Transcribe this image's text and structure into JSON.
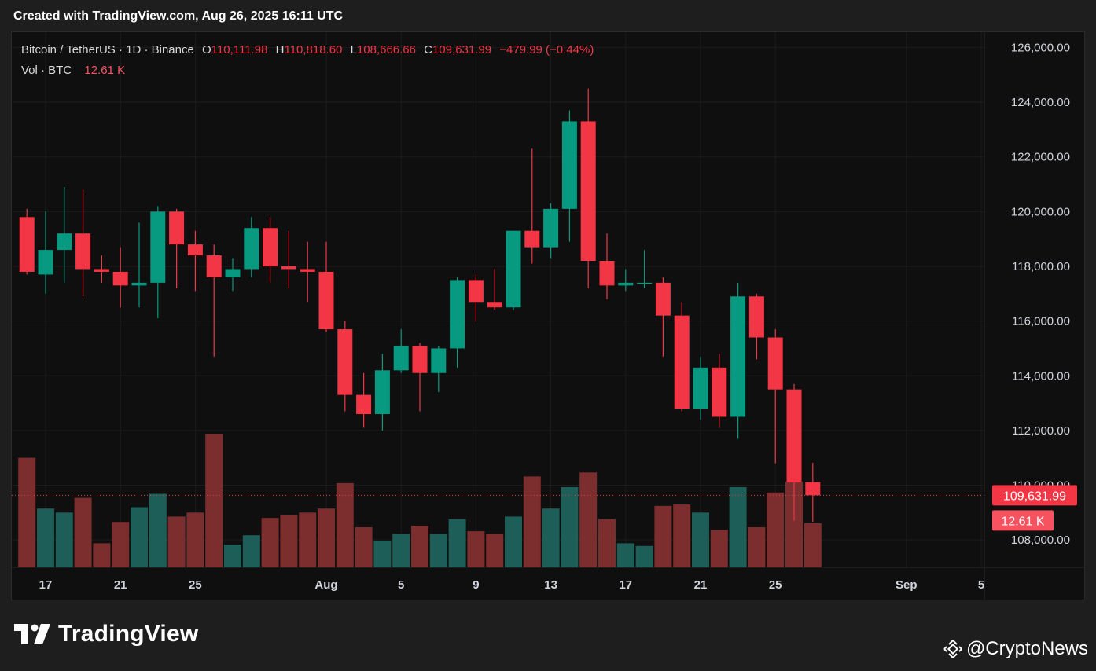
{
  "caption": "Created with TradingView.com, Aug 26, 2025 16:11 UTC",
  "legend": {
    "symbol": "Bitcoin / TetherUS · 1D · Binance",
    "open_label": "O",
    "open": "110,111.98",
    "high_label": "H",
    "high": "110,818.60",
    "low_label": "L",
    "low": "108,666.66",
    "close_label": "C",
    "close": "109,631.99",
    "change": "−479.99 (−0.44%)",
    "vol_label": "Vol · BTC",
    "vol_value": "12.61 K"
  },
  "logos": {
    "left_text": "TradingView",
    "right_text": "@CryptoNews"
  },
  "colors": {
    "up": "#089981",
    "down": "#f23645",
    "vol_up": "#1d5e58",
    "vol_down": "#7c2d2d",
    "background": "#0f0f0f",
    "grid": "#1c1c1c",
    "axis_text": "#d1d4dc"
  },
  "chart_data": {
    "type": "candlestick",
    "title": "Bitcoin / TetherUS · 1D · Binance",
    "y_axis": {
      "range": [
        107000,
        126500
      ],
      "ticks": [
        108000,
        110000,
        112000,
        114000,
        116000,
        118000,
        120000,
        122000,
        124000,
        126000
      ],
      "tick_labels": [
        "108,000.00",
        "110,000.00",
        "112,000.00",
        "114,000.00",
        "116,000.00",
        "118,000.00",
        "120,000.00",
        "122,000.00",
        "124,000.00",
        "126,000.00"
      ]
    },
    "x_axis": {
      "tick_labels": [
        "17",
        "21",
        "25",
        "Aug",
        "5",
        "9",
        "13",
        "17",
        "21",
        "25",
        "Sep",
        "5"
      ],
      "tick_dates": [
        "2025-07-17",
        "2025-07-21",
        "2025-07-25",
        "2025-08-01",
        "2025-08-05",
        "2025-08-09",
        "2025-08-13",
        "2025-08-17",
        "2025-08-21",
        "2025-08-25",
        "2025-09-01",
        "2025-09-05"
      ]
    },
    "last_price_label": "109,631.99",
    "last_price": 109631.99,
    "last_volume_label": "12.61 K",
    "candles": [
      {
        "date": "2025-07-16",
        "o": 119800,
        "h": 120100,
        "l": 117700,
        "c": 117800
      },
      {
        "date": "2025-07-17",
        "o": 117700,
        "h": 120000,
        "l": 117000,
        "c": 118600
      },
      {
        "date": "2025-07-18",
        "o": 118600,
        "h": 120900,
        "l": 117400,
        "c": 119200
      },
      {
        "date": "2025-07-19",
        "o": 119200,
        "h": 120800,
        "l": 116900,
        "c": 117900
      },
      {
        "date": "2025-07-20",
        "o": 117900,
        "h": 118400,
        "l": 117400,
        "c": 117800
      },
      {
        "date": "2025-07-21",
        "o": 117800,
        "h": 118700,
        "l": 116500,
        "c": 117300
      },
      {
        "date": "2025-07-22",
        "o": 117300,
        "h": 119600,
        "l": 116500,
        "c": 117400
      },
      {
        "date": "2025-07-23",
        "o": 117400,
        "h": 120200,
        "l": 116100,
        "c": 120000
      },
      {
        "date": "2025-07-24",
        "o": 120000,
        "h": 120100,
        "l": 117200,
        "c": 118800
      },
      {
        "date": "2025-07-25",
        "o": 118800,
        "h": 119300,
        "l": 117100,
        "c": 118400
      },
      {
        "date": "2025-07-26",
        "o": 118400,
        "h": 118800,
        "l": 114700,
        "c": 117600
      },
      {
        "date": "2025-07-27",
        "o": 117600,
        "h": 118300,
        "l": 117100,
        "c": 117900
      },
      {
        "date": "2025-07-28",
        "o": 117900,
        "h": 119800,
        "l": 117600,
        "c": 119400
      },
      {
        "date": "2025-07-29",
        "o": 119400,
        "h": 119800,
        "l": 117400,
        "c": 118000
      },
      {
        "date": "2025-07-30",
        "o": 118000,
        "h": 119300,
        "l": 117200,
        "c": 117900
      },
      {
        "date": "2025-07-31",
        "o": 117900,
        "h": 118900,
        "l": 116700,
        "c": 117800
      },
      {
        "date": "2025-08-01",
        "o": 117800,
        "h": 118900,
        "l": 115600,
        "c": 115700
      },
      {
        "date": "2025-08-02",
        "o": 115700,
        "h": 116000,
        "l": 112700,
        "c": 113300
      },
      {
        "date": "2025-08-03",
        "o": 113300,
        "h": 114100,
        "l": 112100,
        "c": 112600
      },
      {
        "date": "2025-08-04",
        "o": 112600,
        "h": 114800,
        "l": 112000,
        "c": 114200
      },
      {
        "date": "2025-08-05",
        "o": 114200,
        "h": 115700,
        "l": 114100,
        "c": 115100
      },
      {
        "date": "2025-08-06",
        "o": 115100,
        "h": 115200,
        "l": 112700,
        "c": 114100
      },
      {
        "date": "2025-08-07",
        "o": 114100,
        "h": 115100,
        "l": 113400,
        "c": 115000
      },
      {
        "date": "2025-08-08",
        "o": 115000,
        "h": 117600,
        "l": 114300,
        "c": 117500
      },
      {
        "date": "2025-08-09",
        "o": 117500,
        "h": 117700,
        "l": 116000,
        "c": 116700
      },
      {
        "date": "2025-08-10",
        "o": 116700,
        "h": 117900,
        "l": 116400,
        "c": 116500
      },
      {
        "date": "2025-08-11",
        "o": 116500,
        "h": 119300,
        "l": 116400,
        "c": 119300
      },
      {
        "date": "2025-08-12",
        "o": 119300,
        "h": 122300,
        "l": 118100,
        "c": 118700
      },
      {
        "date": "2025-08-13",
        "o": 118700,
        "h": 120300,
        "l": 118300,
        "c": 120100
      },
      {
        "date": "2025-08-14",
        "o": 120100,
        "h": 123700,
        "l": 118900,
        "c": 123300
      },
      {
        "date": "2025-08-15",
        "o": 123300,
        "h": 124500,
        "l": 117200,
        "c": 118200
      },
      {
        "date": "2025-08-16",
        "o": 118200,
        "h": 119200,
        "l": 116800,
        "c": 117300
      },
      {
        "date": "2025-08-17",
        "o": 117300,
        "h": 117900,
        "l": 117100,
        "c": 117400
      },
      {
        "date": "2025-08-18",
        "o": 117400,
        "h": 118600,
        "l": 117200,
        "c": 117400
      },
      {
        "date": "2025-08-19",
        "o": 117400,
        "h": 117600,
        "l": 114700,
        "c": 116200
      },
      {
        "date": "2025-08-20",
        "o": 116200,
        "h": 116700,
        "l": 112700,
        "c": 112800
      },
      {
        "date": "2025-08-21",
        "o": 112800,
        "h": 114700,
        "l": 112400,
        "c": 114300
      },
      {
        "date": "2025-08-22",
        "o": 114300,
        "h": 114800,
        "l": 112100,
        "c": 112500
      },
      {
        "date": "2025-08-23",
        "o": 112500,
        "h": 117400,
        "l": 111700,
        "c": 116900
      },
      {
        "date": "2025-08-24",
        "o": 116900,
        "h": 117000,
        "l": 114600,
        "c": 115400
      },
      {
        "date": "2025-08-25",
        "o": 115400,
        "h": 115700,
        "l": 110800,
        "c": 113500
      },
      {
        "date": "2025-08-26",
        "o": 113500,
        "h": 113700,
        "l": 108700,
        "c": 110100
      },
      {
        "date": "2025-08-27",
        "o": 110111.98,
        "h": 110818.6,
        "l": 108666.66,
        "c": 109631.99
      }
    ],
    "volume_heights_relative": [
      0.82,
      0.44,
      0.41,
      0.52,
      0.18,
      0.34,
      0.45,
      0.55,
      0.38,
      0.41,
      1.0,
      0.17,
      0.24,
      0.37,
      0.39,
      0.41,
      0.44,
      0.63,
      0.3,
      0.2,
      0.25,
      0.31,
      0.25,
      0.36,
      0.27,
      0.25,
      0.38,
      0.68,
      0.44,
      0.6,
      0.71,
      0.36,
      0.18,
      0.16,
      0.46,
      0.47,
      0.41,
      0.28,
      0.6,
      0.3,
      0.56,
      0.64,
      0.33
    ]
  }
}
